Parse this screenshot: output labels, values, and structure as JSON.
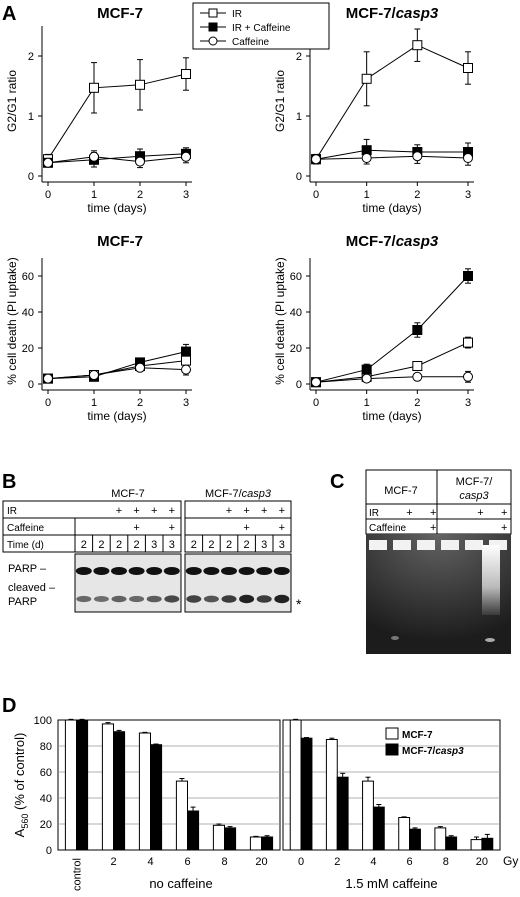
{
  "panel_letters": {
    "a": "A",
    "b": "B",
    "c": "C",
    "d": "D"
  },
  "legend_a": {
    "entries": [
      {
        "label": "IR",
        "marker": "open-square"
      },
      {
        "label": "IR + Caffeine",
        "marker": "filled-square"
      },
      {
        "label": "Caffeine",
        "marker": "open-circle"
      }
    ]
  },
  "chart_data": [
    {
      "id": "g2g1_mcf7",
      "type": "line",
      "title": "MCF-7",
      "title_italic": "",
      "xlabel": "time (days)",
      "ylabel": "G2/G1 ratio",
      "x": [
        0,
        1,
        2,
        3
      ],
      "xlim": [
        0,
        3
      ],
      "ylim": [
        0,
        2.5
      ],
      "xticks": [
        "0",
        "1",
        "2",
        "3"
      ],
      "yticks": [
        "0",
        "1",
        "2"
      ],
      "ytick_values": [
        0,
        1,
        2
      ],
      "series": [
        {
          "name": "IR",
          "marker": "open-square",
          "values": [
            0.28,
            1.47,
            1.52,
            1.7
          ],
          "err": [
            0.08,
            0.42,
            0.42,
            0.27
          ]
        },
        {
          "name": "IR + Caffeine",
          "marker": "filled-square",
          "values": [
            0.22,
            0.27,
            0.33,
            0.37
          ],
          "err": [
            0.05,
            0.12,
            0.12,
            0.1
          ]
        },
        {
          "name": "Caffeine",
          "marker": "open-circle",
          "values": [
            0.22,
            0.32,
            0.24,
            0.32
          ],
          "err": [
            0.05,
            0.1,
            0.1,
            0.1
          ]
        }
      ]
    },
    {
      "id": "g2g1_casp3",
      "type": "line",
      "title": "MCF-7/",
      "title_italic": "casp3",
      "xlabel": "time (days)",
      "ylabel": "G2/G1 ratio",
      "x": [
        0,
        1,
        2,
        3
      ],
      "xlim": [
        0,
        3
      ],
      "ylim": [
        0,
        2.5
      ],
      "xticks": [
        "0",
        "1",
        "2",
        "3"
      ],
      "yticks": [
        "0",
        "1",
        "2"
      ],
      "ytick_values": [
        0,
        1,
        2
      ],
      "series": [
        {
          "name": "IR",
          "marker": "open-square",
          "values": [
            0.28,
            1.62,
            2.18,
            1.8
          ],
          "err": [
            0.08,
            0.45,
            0.27,
            0.27
          ]
        },
        {
          "name": "IR + Caffeine",
          "marker": "filled-square",
          "values": [
            0.28,
            0.43,
            0.4,
            0.4
          ],
          "err": [
            0.05,
            0.18,
            0.12,
            0.15
          ]
        },
        {
          "name": "Caffeine",
          "marker": "open-circle",
          "values": [
            0.28,
            0.3,
            0.33,
            0.3
          ],
          "err": [
            0.05,
            0.1,
            0.12,
            0.12
          ]
        }
      ]
    },
    {
      "id": "death_mcf7",
      "type": "line",
      "title": "MCF-7",
      "title_italic": "",
      "xlabel": "time (days)",
      "ylabel": "% cell death (PI uptake)",
      "x": [
        0,
        1,
        2,
        3
      ],
      "xlim": [
        0,
        3
      ],
      "ylim": [
        0,
        70
      ],
      "xticks": [
        "0",
        "1",
        "2",
        "3"
      ],
      "yticks": [
        "0",
        "20",
        "40",
        "60"
      ],
      "ytick_values": [
        0,
        20,
        40,
        60
      ],
      "series": [
        {
          "name": "IR",
          "marker": "open-square",
          "values": [
            3,
            5,
            10,
            13
          ],
          "err": [
            1.5,
            1.5,
            2,
            3
          ]
        },
        {
          "name": "IR + Caffeine",
          "marker": "filled-square",
          "values": [
            3,
            4,
            12,
            18
          ],
          "err": [
            1.5,
            1.5,
            2,
            4
          ]
        },
        {
          "name": "Caffeine",
          "marker": "open-circle",
          "values": [
            3,
            5,
            9,
            8
          ],
          "err": [
            1.5,
            1.5,
            2,
            3
          ]
        }
      ]
    },
    {
      "id": "death_casp3",
      "type": "line",
      "title": "MCF-7/",
      "title_italic": "casp3",
      "xlabel": "time (days)",
      "ylabel": "% cell death (PI uptake)",
      "x": [
        0,
        1,
        2,
        3
      ],
      "xlim": [
        0,
        3
      ],
      "ylim": [
        0,
        70
      ],
      "xticks": [
        "0",
        "1",
        "2",
        "3"
      ],
      "yticks": [
        "0",
        "20",
        "40",
        "60"
      ],
      "ytick_values": [
        0,
        20,
        40,
        60
      ],
      "series": [
        {
          "name": "IR",
          "marker": "open-square",
          "values": [
            1,
            4,
            10,
            23
          ],
          "err": [
            1,
            1.5,
            2,
            3
          ]
        },
        {
          "name": "IR + Caffeine",
          "marker": "filled-square",
          "values": [
            1,
            8,
            30,
            60
          ],
          "err": [
            1,
            3,
            4,
            4
          ]
        },
        {
          "name": "Caffeine",
          "marker": "open-circle",
          "values": [
            1,
            3,
            4,
            4
          ],
          "err": [
            1,
            1.5,
            1.5,
            3
          ]
        }
      ]
    },
    {
      "id": "a560",
      "type": "bar",
      "ylabel_main": "A",
      "ylabel_sub": "560",
      "ylabel_rest": " (% of control)",
      "ylim": [
        0,
        100
      ],
      "yticks": [
        "0",
        "20",
        "40",
        "60",
        "80",
        "100"
      ],
      "ytick_values": [
        0,
        20,
        40,
        60,
        80,
        100
      ],
      "grid": true,
      "unit_label": "Gy",
      "legend": [
        {
          "label": "MCF-7",
          "label_italic": "",
          "fill": "#ffffff"
        },
        {
          "label": "MCF-7/",
          "label_italic": "casp3",
          "fill": "#000000"
        }
      ],
      "groups": [
        {
          "name": "no caffeine",
          "categories": [
            "control",
            "2",
            "4",
            "6",
            "8",
            "20"
          ],
          "series": [
            {
              "name": "MCF-7",
              "values": [
                100,
                97,
                90,
                53,
                19,
                10
              ],
              "err": [
                0.5,
                1,
                0.5,
                2,
                1,
                0.5
              ]
            },
            {
              "name": "MCF-7/casp3",
              "values": [
                100,
                91,
                81,
                30,
                17,
                10
              ],
              "err": [
                0.5,
                1,
                0.5,
                3,
                1,
                1
              ]
            }
          ]
        },
        {
          "name": "1.5 mM caffeine",
          "categories": [
            "0",
            "2",
            "4",
            "6",
            "8",
            "20"
          ],
          "series": [
            {
              "name": "MCF-7",
              "values": [
                100,
                85,
                53,
                25,
                17,
                8
              ],
              "err": [
                0.5,
                1,
                3,
                0.5,
                1,
                2
              ]
            },
            {
              "name": "MCF-7/casp3",
              "values": [
                86,
                56,
                33,
                16,
                10,
                9
              ],
              "err": [
                0.5,
                3,
                2,
                1,
                1,
                3
              ]
            }
          ]
        }
      ]
    }
  ],
  "blot_b": {
    "left_title": "MCF-7",
    "right_title": "MCF-7/",
    "right_title_italic": "casp3",
    "row_labels": [
      "IR",
      "Caffeine",
      "Time (d)"
    ],
    "lanes": [
      {
        "ir": "",
        "caf": "",
        "time": "2"
      },
      {
        "ir": "+",
        "caf": "",
        "time": "2"
      },
      {
        "ir": "+",
        "caf": "+",
        "time": "2"
      },
      {
        "ir": "+",
        "caf": "",
        "time": "3"
      },
      {
        "ir": "+",
        "caf": "+",
        "time": "3"
      }
    ],
    "lanes_left": [
      {
        "ir": "",
        "caf": "",
        "time": "2"
      },
      {
        "ir": "",
        "caf": "",
        "time": "2"
      },
      {
        "ir": "+",
        "caf": "",
        "time": "2"
      },
      {
        "ir": "+",
        "caf": "+",
        "time": "2"
      },
      {
        "ir": "+",
        "caf": "",
        "time": "3"
      },
      {
        "ir": "+",
        "caf": "+",
        "time": "3"
      }
    ],
    "lanes_right": [
      {
        "ir": "",
        "caf": "",
        "time": "2"
      },
      {
        "ir": "",
        "caf": "",
        "time": "2"
      },
      {
        "ir": "+",
        "caf": "",
        "time": "2"
      },
      {
        "ir": "+",
        "caf": "+",
        "time": "2"
      },
      {
        "ir": "+",
        "caf": "",
        "time": "3"
      },
      {
        "ir": "+",
        "caf": "+",
        "time": "3"
      }
    ],
    "band_labels": [
      "PARP –",
      "cleaved –",
      "PARP"
    ],
    "asterisk": "*",
    "cleaved_left": [
      0.45,
      0.4,
      0.5,
      0.45,
      0.55,
      0.7
    ],
    "cleaved_right": [
      0.75,
      0.6,
      0.8,
      1.0,
      0.8,
      1.0
    ]
  },
  "gel_c": {
    "left_title": "MCF-7",
    "right_title_1": "MCF-7/",
    "right_title_2": "casp3",
    "row_labels": [
      "IR",
      "Caffeine"
    ],
    "ir_left": [
      "",
      "+",
      "+"
    ],
    "caf_left": [
      "",
      "",
      "+"
    ],
    "ir_right": [
      "",
      "+",
      "+"
    ],
    "caf_right": [
      "",
      "",
      "+"
    ]
  }
}
